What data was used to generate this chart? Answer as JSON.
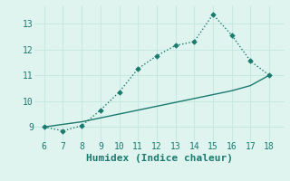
{
  "x": [
    6,
    7,
    8,
    9,
    10,
    11,
    12,
    13,
    14,
    15,
    16,
    17,
    18
  ],
  "y_curve": [
    9.0,
    8.85,
    9.05,
    9.65,
    10.35,
    11.25,
    11.75,
    12.15,
    12.3,
    13.35,
    12.55,
    11.55,
    11.0
  ],
  "y_trend": [
    9.0,
    9.1,
    9.2,
    9.35,
    9.5,
    9.65,
    9.8,
    9.95,
    10.1,
    10.25,
    10.4,
    10.6,
    11.0
  ],
  "line_color": "#1a7a6e",
  "bg_color": "#dff4ef",
  "grid_color": "#c8e8e2",
  "xlabel": "Humidex (Indice chaleur)",
  "xlim": [
    5.5,
    18.8
  ],
  "ylim": [
    8.45,
    13.7
  ],
  "xticks": [
    6,
    7,
    8,
    9,
    10,
    11,
    12,
    13,
    14,
    15,
    16,
    17,
    18
  ],
  "yticks": [
    9,
    10,
    11,
    12,
    13
  ],
  "tick_fontsize": 7,
  "xlabel_fontsize": 8,
  "marker": "D",
  "markersize": 2.8,
  "linewidth": 1.0
}
